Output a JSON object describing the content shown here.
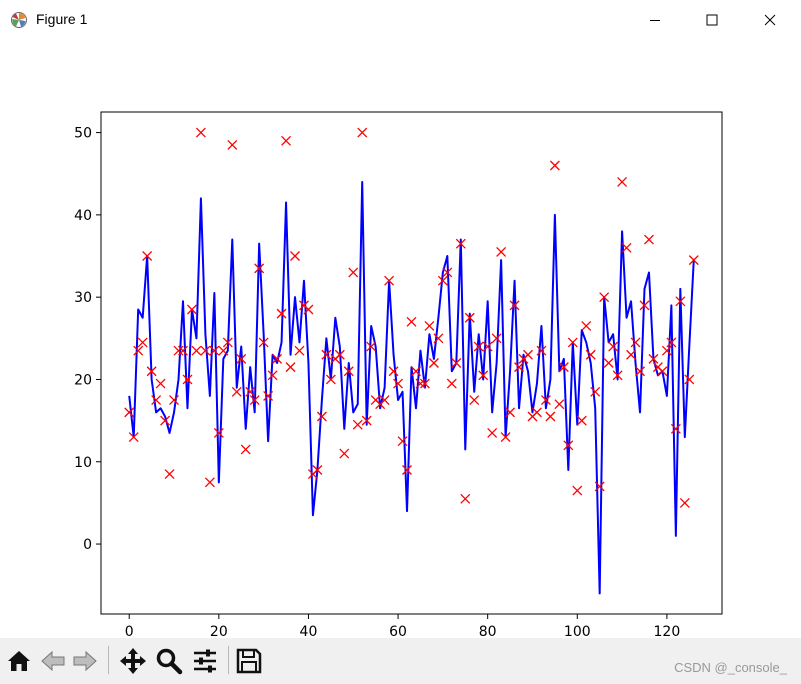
{
  "window": {
    "title": "Figure 1",
    "icons": [
      "matplotlib-icon",
      "minimize-icon",
      "maximize-icon",
      "close-icon"
    ]
  },
  "toolbar": {
    "buttons": [
      "home-icon",
      "back-icon",
      "forward-icon",
      "pan-icon",
      "zoom-icon",
      "configure-subplots-icon",
      "save-icon"
    ],
    "watermark": "CSDN @_console_"
  },
  "colors": {
    "line": "#0000ff",
    "marker": "#ff0000",
    "background": "#ffffff",
    "toolbar": "#f0f0f0"
  },
  "chart_data": {
    "type": "line",
    "title": "",
    "xlabel": "",
    "ylabel": "",
    "xlim": [
      -6.3,
      132.3
    ],
    "ylim": [
      -8.5,
      52.5
    ],
    "xticks": [
      0,
      20,
      40,
      60,
      80,
      100,
      120
    ],
    "yticks": [
      0,
      10,
      20,
      30,
      40,
      50
    ],
    "grid": false,
    "legend": "none",
    "series": [
      {
        "style": "line",
        "color": "#0000ff",
        "x": [
          0,
          1,
          2,
          3,
          4,
          5,
          6,
          7,
          8,
          9,
          10,
          11,
          12,
          13,
          14,
          15,
          16,
          17,
          18,
          19,
          20,
          21,
          22,
          23,
          24,
          25,
          26,
          27,
          28,
          29,
          30,
          31,
          32,
          33,
          34,
          35,
          36,
          37,
          38,
          39,
          40,
          41,
          42,
          43,
          44,
          45,
          46,
          47,
          48,
          49,
          50,
          51,
          52,
          53,
          54,
          55,
          56,
          57,
          58,
          59,
          60,
          61,
          62,
          63,
          64,
          65,
          66,
          67,
          68,
          69,
          70,
          71,
          72,
          73,
          74,
          75,
          76,
          77,
          78,
          79,
          80,
          81,
          82,
          83,
          84,
          85,
          86,
          87,
          88,
          89,
          90,
          91,
          92,
          93,
          94,
          95,
          96,
          97,
          98,
          99,
          100,
          101,
          102,
          103,
          104,
          105,
          106,
          107,
          108,
          109,
          110,
          111,
          112,
          113,
          114,
          115,
          116,
          117,
          118,
          119,
          120,
          121,
          122,
          123,
          124,
          125,
          126
        ],
        "y": [
          18,
          13,
          28.5,
          27.5,
          35,
          20,
          16,
          16.5,
          15.5,
          13.5,
          16,
          20,
          29.5,
          16.5,
          28.5,
          25,
          42,
          25.5,
          18,
          30.5,
          7.5,
          22.5,
          23.5,
          37,
          19,
          24,
          14,
          21.5,
          16,
          36.5,
          25.5,
          12.5,
          23,
          22,
          24.5,
          41.5,
          23,
          30,
          24.5,
          32,
          22,
          3.5,
          9,
          17.5,
          25,
          20,
          27.5,
          24,
          14,
          22,
          16,
          17,
          44,
          14.5,
          26.5,
          24,
          16.5,
          19,
          32,
          23,
          17.5,
          18.5,
          4,
          21.5,
          16.5,
          23.5,
          19,
          25.5,
          22.5,
          27.5,
          33,
          35,
          21,
          22,
          37,
          11.5,
          28,
          18.5,
          25.5,
          20,
          29.5,
          16,
          22,
          34.5,
          13,
          21,
          32,
          16.5,
          23,
          21,
          16,
          19.5,
          26.5,
          16.5,
          20,
          40,
          21,
          22.5,
          9,
          24.5,
          14.5,
          26,
          24.5,
          22,
          16.5,
          -6,
          30,
          24.5,
          25.5,
          20,
          38,
          27.5,
          29.5,
          22,
          16,
          31,
          33,
          22.5,
          20.5,
          21,
          18,
          29,
          1,
          31,
          13,
          24,
          34.5
        ]
      },
      {
        "style": "scatter",
        "marker": "x",
        "color": "#ff0000",
        "x": [
          0,
          1,
          2,
          3,
          4,
          5,
          6,
          7,
          8,
          9,
          10,
          11,
          12,
          13,
          14,
          15,
          16,
          17,
          18,
          19,
          20,
          21,
          22,
          23,
          24,
          25,
          26,
          27,
          28,
          29,
          30,
          31,
          32,
          33,
          34,
          35,
          36,
          37,
          38,
          39,
          40,
          41,
          42,
          43,
          44,
          45,
          46,
          47,
          48,
          49,
          50,
          51,
          52,
          53,
          54,
          55,
          56,
          57,
          58,
          59,
          60,
          61,
          62,
          63,
          64,
          65,
          66,
          67,
          68,
          69,
          70,
          71,
          72,
          73,
          74,
          75,
          76,
          77,
          78,
          79,
          80,
          81,
          82,
          83,
          84,
          85,
          86,
          87,
          88,
          89,
          90,
          91,
          92,
          93,
          94,
          95,
          96,
          97,
          98,
          99,
          100,
          101,
          102,
          103,
          104,
          105,
          106,
          107,
          108,
          109,
          110,
          111,
          112,
          113,
          114,
          115,
          116,
          117,
          118,
          119,
          120,
          121,
          122,
          123,
          124,
          125,
          126
        ],
        "y": [
          16,
          13,
          23.5,
          24.5,
          35,
          21,
          17.5,
          19.5,
          15,
          8.5,
          17.5,
          23.5,
          23.5,
          20,
          28.5,
          23.5,
          50,
          23.5,
          7.5,
          23.5,
          13.5,
          23.5,
          24.5,
          48.5,
          18.5,
          22.5,
          11.5,
          18.5,
          17.5,
          33.5,
          24.5,
          18,
          20.5,
          22.5,
          28,
          49,
          21.5,
          35,
          23.5,
          29,
          28.5,
          8.5,
          9,
          15.5,
          23,
          20,
          22.5,
          23,
          11,
          21,
          33,
          14.5,
          50,
          15,
          24,
          17.5,
          17,
          17.5,
          32,
          21,
          19.5,
          12.5,
          9,
          27,
          21,
          19.5,
          19.5,
          26.5,
          22,
          25,
          32,
          33,
          19.5,
          22,
          36.5,
          5.5,
          27.5,
          17.5,
          24,
          20.5,
          24,
          13.5,
          25,
          35.5,
          13,
          16,
          29,
          21.5,
          22.5,
          23,
          15.5,
          16,
          23.5,
          17.5,
          15.5,
          46,
          17,
          21.5,
          12,
          24.5,
          6.5,
          15,
          26.5,
          23,
          18.5,
          7,
          30,
          22,
          24,
          20.5,
          44,
          36,
          23,
          24.5,
          21,
          29,
          37,
          22.5,
          21.5,
          21,
          23.5,
          24.5,
          14,
          29.5,
          5,
          20,
          34.5
        ]
      }
    ]
  }
}
